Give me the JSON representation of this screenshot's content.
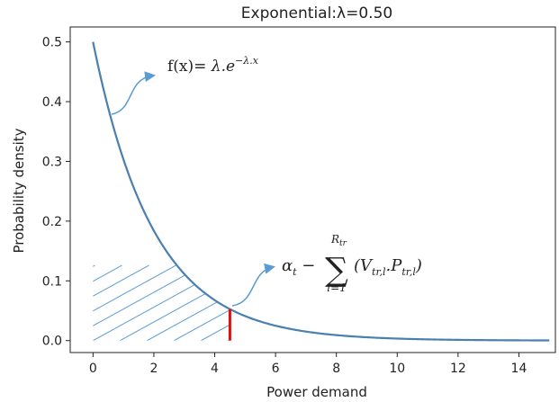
{
  "chart_data": {
    "type": "line",
    "title": "Exponential:λ=0.50",
    "xlabel": "Power demand",
    "ylabel": "Probability density",
    "xlim": [
      -0.75,
      15.2
    ],
    "ylim": [
      -0.02,
      0.525
    ],
    "xticks": [
      0,
      2,
      4,
      6,
      8,
      10,
      12,
      14
    ],
    "yticks": [
      0.0,
      0.1,
      0.2,
      0.3,
      0.4,
      0.5
    ],
    "grid": false,
    "series": [
      {
        "function": "lambda*exp(-lambda*x)",
        "lambda": 0.5,
        "x_range": [
          0,
          15
        ],
        "color": "#4a7fb0"
      }
    ],
    "marker": {
      "x": 4.5,
      "color": "#e01010"
    },
    "hatched_region": {
      "x_range": [
        0,
        4.5
      ],
      "color": "#5a9bd5"
    },
    "annotations": [
      {
        "parts": [
          {
            "text": "f(x)= "
          },
          {
            "text": "λ.e",
            "italic": true
          },
          {
            "text": "−λ.x",
            "italic": true,
            "sup": true
          }
        ],
        "arrow_target": "curve"
      },
      {
        "parts": [
          {
            "text": "α",
            "italic": true
          },
          {
            "text": "t",
            "italic": true,
            "sub": true
          },
          {
            "text": " − "
          },
          {
            "text": "∑",
            "big": true,
            "over": "R",
            "over_sub": "tr",
            "under": "l=1"
          },
          {
            "text": "(V",
            "italic": true
          },
          {
            "text": "tr,l",
            "italic": true,
            "sub": true
          },
          {
            "text": ".P",
            "italic": true
          },
          {
            "text": "tr,l",
            "italic": true,
            "sub": true
          },
          {
            "text": ")",
            "italic": true
          }
        ],
        "arrow_target": "marker"
      }
    ]
  }
}
